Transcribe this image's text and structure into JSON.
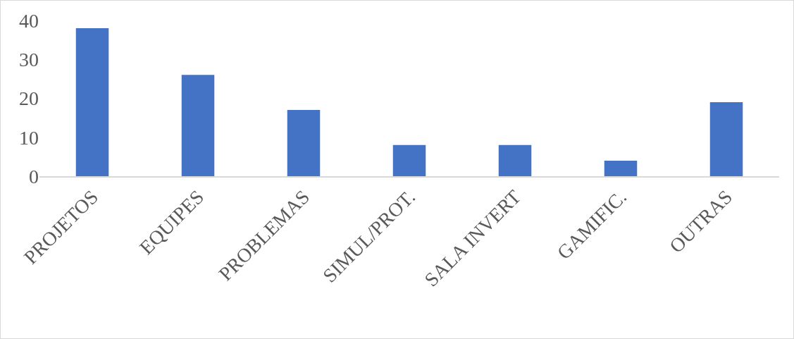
{
  "chart_data": {
    "type": "bar",
    "categories": [
      "PROJETOS",
      "EQUIPES",
      "PROBLEMAS",
      "SIMUL/PROT.",
      "SALA INVERT",
      "GAMIFIC.",
      "OUTRAS"
    ],
    "values": [
      38,
      26,
      17,
      8,
      8,
      4,
      19
    ],
    "color": "#4472c4",
    "ylim": [
      0,
      40
    ],
    "yticks": [
      0,
      10,
      20,
      30,
      40
    ],
    "grid": false,
    "legend": false
  }
}
